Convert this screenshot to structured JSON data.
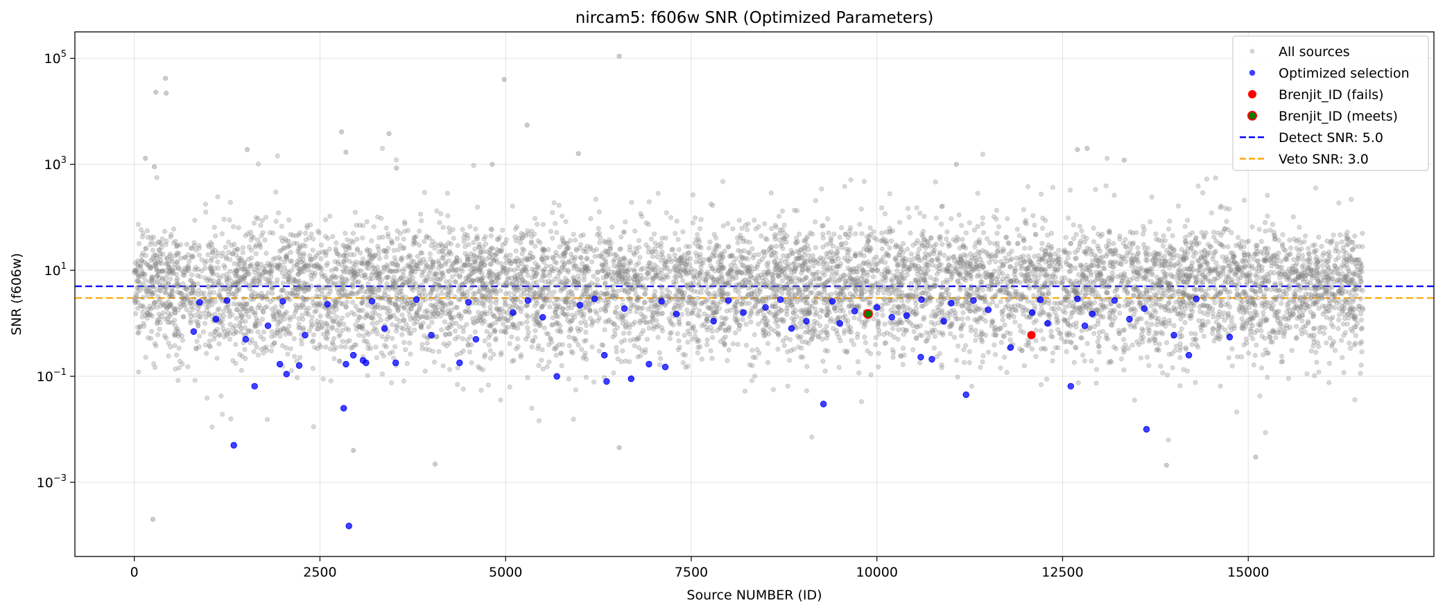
{
  "chart_data": {
    "type": "scatter",
    "title": "nircam5: f606w SNR (Optimized Parameters)",
    "xlabel": "Source NUMBER (ID)",
    "ylabel": "SNR (f606w)",
    "xlim": [
      -800,
      17500
    ],
    "ylim_log10": [
      -4.4,
      5.5
    ],
    "y_scale": "log",
    "grid": true,
    "legend_position": "top-right",
    "x_ticks": [
      {
        "value": 0,
        "label": "0"
      },
      {
        "value": 2500,
        "label": "2500"
      },
      {
        "value": 5000,
        "label": "5000"
      },
      {
        "value": 7500,
        "label": "7500"
      },
      {
        "value": 10000,
        "label": "10000"
      },
      {
        "value": 12500,
        "label": "12500"
      },
      {
        "value": 15000,
        "label": "15000"
      }
    ],
    "y_ticks": [
      {
        "value": 0.001,
        "base": "10",
        "exp": "−3"
      },
      {
        "value": 0.1,
        "base": "10",
        "exp": "−1"
      },
      {
        "value": 10,
        "base": "10",
        "exp": "1"
      },
      {
        "value": 1000,
        "base": "10",
        "exp": "3"
      },
      {
        "value": 100000,
        "base": "10",
        "exp": "5"
      }
    ],
    "thresholds": [
      {
        "name": "Detect SNR: 5.0",
        "value": 5.0,
        "color": "#0000ff"
      },
      {
        "name": "Veto SNR: 3.0",
        "value": 3.0,
        "color": "#ffa500"
      }
    ],
    "series": [
      {
        "name": "All sources",
        "color": "#808080",
        "marker": "circle-small-translucent",
        "x_range": [
          0,
          16550
        ],
        "approx_count": 16500,
        "outliers": [
          [
            250,
            0.0002
          ],
          [
            4050,
            0.0022
          ],
          [
            2950,
            0.004
          ],
          [
            6530,
            0.0045
          ],
          [
            15100,
            0.003
          ],
          [
            13900,
            0.0021
          ],
          [
            290,
            23000
          ],
          [
            420,
            42000
          ],
          [
            430,
            22000
          ],
          [
            4980,
            40000
          ],
          [
            6530,
            110000
          ],
          [
            2790,
            4100
          ],
          [
            3430,
            3800
          ],
          [
            5290,
            5500
          ],
          [
            1520,
            1900
          ],
          [
            2850,
            1700
          ],
          [
            5980,
            1600
          ],
          [
            12700,
            1900
          ],
          [
            12830,
            2000
          ],
          [
            13330,
            1200
          ],
          [
            11070,
            1000
          ],
          [
            4820,
            1000
          ],
          [
            150,
            1300
          ],
          [
            270,
            900
          ],
          [
            3530,
            850
          ]
        ]
      },
      {
        "name": "Optimized selection",
        "color": "#0000ff",
        "marker": "circle",
        "points": [
          [
            2890,
            0.00015
          ],
          [
            1340,
            0.005
          ],
          [
            2820,
            0.025
          ],
          [
            9280,
            0.03
          ],
          [
            11200,
            0.045
          ],
          [
            13630,
            0.01
          ],
          [
            1620,
            0.065
          ],
          [
            5690,
            0.1
          ],
          [
            6360,
            0.08
          ],
          [
            6690,
            0.09
          ],
          [
            12610,
            0.065
          ],
          [
            2850,
            0.17
          ],
          [
            2950,
            0.25
          ],
          [
            3080,
            0.2
          ],
          [
            3120,
            0.18
          ],
          [
            1960,
            0.17
          ],
          [
            2050,
            0.11
          ],
          [
            2220,
            0.16
          ],
          [
            7150,
            0.15
          ],
          [
            4380,
            0.18
          ],
          [
            6930,
            0.17
          ],
          [
            6330,
            0.25
          ],
          [
            10590,
            0.23
          ],
          [
            10740,
            0.21
          ],
          [
            3520,
            0.18
          ],
          [
            3370,
            0.8
          ],
          [
            4000,
            0.6
          ],
          [
            4600,
            0.5
          ],
          [
            8850,
            0.8
          ],
          [
            9050,
            1.1
          ],
          [
            9500,
            1.0
          ],
          [
            10200,
            1.3
          ],
          [
            10900,
            1.1
          ],
          [
            11500,
            1.8
          ],
          [
            12090,
            1.6
          ],
          [
            12800,
            0.9
          ],
          [
            13400,
            1.2
          ],
          [
            14000,
            0.6
          ],
          [
            14200,
            0.25
          ],
          [
            14750,
            0.55
          ],
          [
            800,
            0.7
          ],
          [
            1100,
            1.2
          ],
          [
            1500,
            0.5
          ],
          [
            1800,
            0.9
          ],
          [
            2300,
            0.6
          ],
          [
            5100,
            1.6
          ],
          [
            5500,
            1.3
          ],
          [
            6000,
            2.2
          ],
          [
            6600,
            1.9
          ],
          [
            7300,
            1.5
          ],
          [
            7800,
            1.1
          ],
          [
            8200,
            1.6
          ],
          [
            8500,
            2.0
          ],
          [
            9700,
            1.7
          ],
          [
            10000,
            2.0
          ],
          [
            10400,
            1.4
          ],
          [
            11000,
            2.4
          ],
          [
            11800,
            0.35
          ],
          [
            12300,
            1.0
          ],
          [
            12900,
            1.5
          ],
          [
            13600,
            1.9
          ],
          [
            880,
            2.5
          ],
          [
            1250,
            2.7
          ],
          [
            2000,
            2.6
          ],
          [
            2600,
            2.3
          ],
          [
            3200,
            2.6
          ],
          [
            3800,
            2.8
          ],
          [
            4500,
            2.5
          ],
          [
            5300,
            2.7
          ],
          [
            6200,
            2.9
          ],
          [
            7100,
            2.6
          ],
          [
            8000,
            2.7
          ],
          [
            8700,
            2.8
          ],
          [
            9400,
            2.6
          ],
          [
            10600,
            2.8
          ],
          [
            11300,
            2.7
          ],
          [
            12200,
            2.8
          ],
          [
            12700,
            2.9
          ],
          [
            13200,
            2.7
          ],
          [
            14300,
            2.9
          ]
        ]
      },
      {
        "name": "Brenjit_ID (fails)",
        "color": "#ff0000",
        "marker": "circle-large",
        "points": [
          [
            12080,
            0.6
          ]
        ]
      },
      {
        "name": "Brenjit_ID (meets)",
        "color": "#008000",
        "edgecolor": "#ff0000",
        "marker": "circle-large",
        "points": [
          [
            9880,
            1.5
          ]
        ]
      }
    ]
  }
}
